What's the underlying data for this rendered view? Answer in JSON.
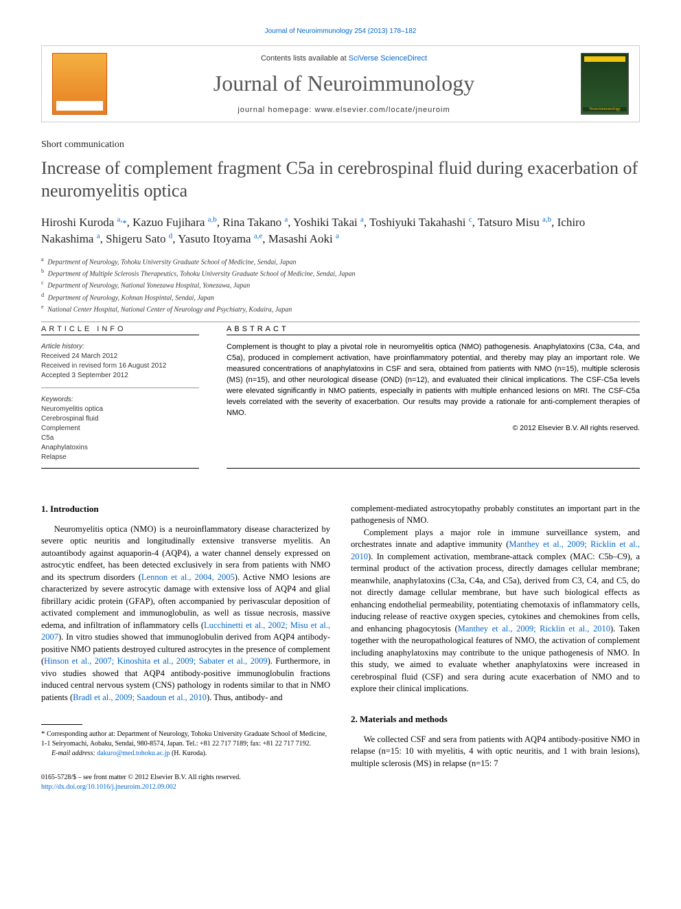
{
  "top_link": "Journal of Neuroimmunology 254 (2013) 178–182",
  "header": {
    "contents_prefix": "Contents lists available at ",
    "contents_link": "SciVerse ScienceDirect",
    "journal_title": "Journal of Neuroimmunology",
    "homepage_prefix": "journal homepage: ",
    "homepage_url": "www.elsevier.com/locate/jneuroim",
    "elsevier_label": "ELSEVIER"
  },
  "article_type": "Short communication",
  "title": "Increase of complement fragment C5a in cerebrospinal fluid during exacerbation of neuromyelitis optica",
  "authors_html": "Hiroshi Kuroda <sup>a,</sup><span class='star'>*</span>, Kazuo Fujihara <sup>a,b</sup>, Rina Takano <sup>a</sup>, Yoshiki Takai <sup>a</sup>, Toshiyuki Takahashi <sup>c</sup>, Tatsuro Misu <sup>a,b</sup>, Ichiro Nakashima <sup>a</sup>, Shigeru Sato <sup>d</sup>, Yasuto Itoyama <sup>a,e</sup>, Masashi Aoki <sup>a</sup>",
  "affiliations": [
    {
      "sup": "a",
      "text": "Department of Neurology, Tohoku University Graduate School of Medicine, Sendai, Japan"
    },
    {
      "sup": "b",
      "text": "Department of Multiple Sclerosis Therapeutics, Tohoku University Graduate School of Medicine, Sendai, Japan"
    },
    {
      "sup": "c",
      "text": "Department of Neurology, National Yonezawa Hospital, Yonezawa, Japan"
    },
    {
      "sup": "d",
      "text": "Department of Neurology, Kohnan Hospintal, Sendai, Japan"
    },
    {
      "sup": "e",
      "text": "National Center Hospital, National Center of Neurology and Psychiatry, Kodaira, Japan"
    }
  ],
  "info": {
    "heading": "article info",
    "history_label": "Article history:",
    "received": "Received 24 March 2012",
    "revised": "Received in revised form 16 August 2012",
    "accepted": "Accepted 3 September 2012",
    "keywords_label": "Keywords:",
    "keywords": [
      "Neuromyelitis optica",
      "Cerebrospinal fluid",
      "Complement",
      "C5a",
      "Anaphylatoxins",
      "Relapse"
    ]
  },
  "abstract": {
    "heading": "abstract",
    "text": "Complement is thought to play a pivotal role in neuromyelitis optica (NMO) pathogenesis. Anaphylatoxins (C3a, C4a, and C5a), produced in complement activation, have proinflammatory potential, and thereby may play an important role. We measured concentrations of anaphylatoxins in CSF and sera, obtained from patients with NMO (n=15), multiple sclerosis (MS) (n=15), and other neurological disease (OND) (n=12), and evaluated their clinical implications. The CSF-C5a levels were elevated significantly in NMO patients, especially in patients with multiple enhanced lesions on MRI. The CSF-C5a levels correlated with the severity of exacerbation. Our results may provide a rationale for anti-complement therapies of NMO.",
    "copyright": "© 2012 Elsevier B.V. All rights reserved."
  },
  "sections": {
    "intro_heading": "1. Introduction",
    "intro_p1_pre": "Neuromyelitis optica (NMO) is a neuroinflammatory disease characterized by severe optic neuritis and longitudinally extensive transverse myelitis. An autoantibody against aquaporin-4 (AQP4), a water channel densely expressed on astrocytic endfeet, has been detected exclusively in sera from patients with NMO and its spectrum disorders (",
    "intro_cite1": "Lennon et al., 2004, 2005",
    "intro_p1_mid1": "). Active NMO lesions are characterized by severe astrocytic damage with extensive loss of AQP4 and glial fibrillary acidic protein (GFAP), often accompanied by perivascular deposition of activated complement and immunoglobulin, as well as tissue necrosis, massive edema, and infiltration of inflammatory cells (",
    "intro_cite2": "Lucchinetti et al., 2002; Misu et al., 2007",
    "intro_p1_mid2": "). In vitro studies showed that immunoglobulin derived from AQP4 antibody-positive NMO patients destroyed cultured astrocytes in the presence of complement (",
    "intro_cite3": "Hinson et al., 2007; Kinoshita et al., 2009; Sabater et al., 2009",
    "intro_p1_mid3": "). Furthermore, in vivo studies showed that AQP4 antibody-positive immunoglobulin fractions induced central nervous system (CNS) pathology in rodents similar to that in NMO patients (",
    "intro_cite4": "Bradl et al., 2009; Saadoun et al., 2010",
    "intro_p1_end": "). Thus, antibody- and",
    "col2_p1": "complement-mediated astrocytopathy probably constitutes an important part in the pathogenesis of NMO.",
    "col2_p2_pre": "Complement plays a major role in immune surveillance system, and orchestrates innate and adaptive immunity (",
    "col2_cite1": "Manthey et al., 2009; Ricklin et al., 2010",
    "col2_p2_mid1": "). In complement activation, membrane-attack complex (MAC: C5b–C9), a terminal product of the activation process, directly damages cellular membrane; meanwhile, anaphylatoxins (C3a, C4a, and C5a), derived from C3, C4, and C5, do not directly damage cellular membrane, but have such biological effects as enhancing endothelial permeability, potentiating chemotaxis of inflammatory cells, inducing release of reactive oxygen species, cytokines and chemokines from cells, and enhancing phagocytosis (",
    "col2_cite2": "Manthey et al., 2009; Ricklin et al., 2010",
    "col2_p2_end": "). Taken together with the neuropathological features of NMO, the activation of complement including anaphylatoxins may contribute to the unique pathogenesis of NMO. In this study, we aimed to evaluate whether anaphylatoxins were increased in cerebrospinal fluid (CSF) and sera during acute exacerbation of NMO and to explore their clinical implications.",
    "methods_heading": "2. Materials and methods",
    "methods_p1": "We collected CSF and sera from patients with AQP4 antibody-positive NMO in relapse (n=15: 10 with myelitis, 4 with optic neuritis, and 1 with brain lesions), multiple sclerosis (MS) in relapse (n=15: 7"
  },
  "footnote": {
    "corr_pre": "Corresponding author at: Department of Neurology, Tohoku University Graduate School of Medicine, 1-1 Seiryomachi, Aobaku, Sendai, 980-8574, Japan. Tel.: +81 22 717 7189; fax: +81 22 717 7192.",
    "email_label": "E-mail address: ",
    "email": "dakuro@med.tohoku.ac.jp",
    "email_suffix": " (H. Kuroda)."
  },
  "bottom": {
    "line1": "0165-5728/$ – see front matter © 2012 Elsevier B.V. All rights reserved.",
    "doi": "http://dx.doi.org/10.1016/j.jneuroim.2012.09.002"
  }
}
